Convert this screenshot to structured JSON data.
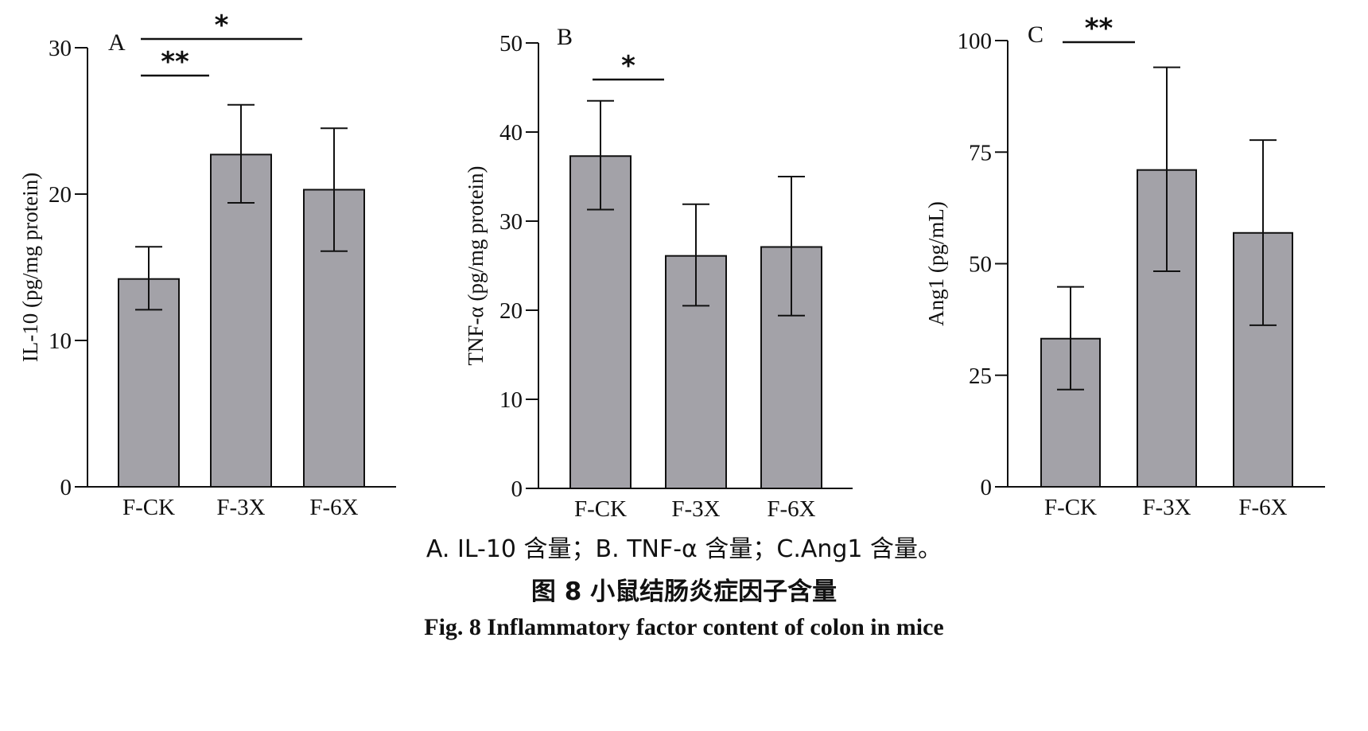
{
  "colors": {
    "bar_fill": "#a3a2a8",
    "stroke": "#111111",
    "background": "#ffffff"
  },
  "chart_data": [
    {
      "type": "bar",
      "panel_label": "A",
      "ylabel": "IL-10 (pg/mg protein)",
      "xlabel": "",
      "ylim": [
        0,
        30
      ],
      "yticks": [
        0,
        10,
        20,
        30
      ],
      "ytick_labels": [
        "0",
        "10",
        "20",
        "30"
      ],
      "categories": [
        "F-CK",
        "F-3X",
        "F-6X"
      ],
      "values": [
        14.2,
        22.7,
        20.3
      ],
      "error_low": [
        12.1,
        19.4,
        16.1
      ],
      "error_high": [
        16.4,
        26.1,
        24.5
      ],
      "significance": [
        {
          "from": 0,
          "to": 1,
          "label": "**"
        },
        {
          "from": 0,
          "to": 2,
          "label": "*"
        }
      ],
      "grid": false
    },
    {
      "type": "bar",
      "panel_label": "B",
      "ylabel": "TNF-α (pg/mg protein)",
      "xlabel": "",
      "ylim": [
        0,
        50
      ],
      "yticks": [
        0,
        10,
        20,
        30,
        40,
        50
      ],
      "ytick_labels": [
        "0",
        "10",
        "20",
        "30",
        "40",
        "50"
      ],
      "categories": [
        "F-CK",
        "F-3X",
        "F-6X"
      ],
      "values": [
        37.3,
        26.1,
        27.1
      ],
      "error_low": [
        31.3,
        20.5,
        19.4
      ],
      "error_high": [
        43.5,
        31.9,
        35.0
      ],
      "significance": [
        {
          "from": 0,
          "to": 1,
          "label": "*"
        }
      ],
      "grid": false
    },
    {
      "type": "bar",
      "panel_label": "C",
      "ylabel": "Ang1 (pg/mL)",
      "xlabel": "",
      "ylim": [
        0,
        100
      ],
      "yticks": [
        0,
        25,
        50,
        75,
        100
      ],
      "ytick_labels": [
        "0",
        "25",
        "50",
        "75",
        "100"
      ],
      "categories": [
        "F-CK",
        "F-3X",
        "F-6X"
      ],
      "values": [
        33.2,
        71.0,
        56.9
      ],
      "error_low": [
        21.8,
        48.3,
        36.2
      ],
      "error_high": [
        44.8,
        94.0,
        77.7
      ],
      "significance": [
        {
          "from": 0,
          "to": 1,
          "label": "**"
        }
      ],
      "grid": false
    }
  ],
  "caption": {
    "subcaption": "A. IL-10 含量；B. TNF-α 含量；C.Ang1 含量。",
    "title_cn": "图  8    小鼠结肠炎症因子含量",
    "title_en": "Fig. 8    Inflammatory factor content of colon in mice"
  }
}
